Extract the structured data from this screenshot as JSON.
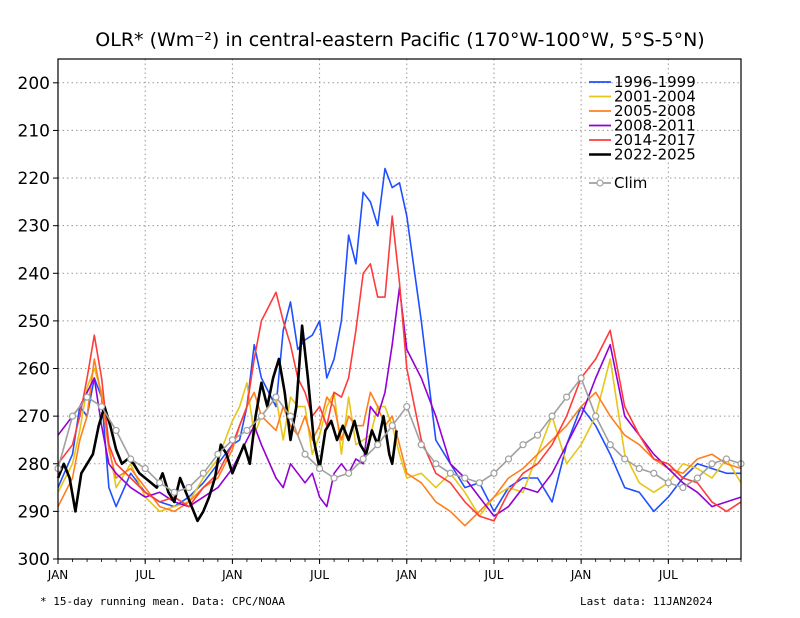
{
  "chart_data": {
    "type": "line",
    "title": "OLR* (Wm⁻²) in central-eastern Pacific (170°W-100°W, 5°S-5°N)",
    "xlabel": "",
    "ylabel": "",
    "ylim": [
      300,
      195
    ],
    "y_inverted": true,
    "y_ticks": [
      "200",
      "210",
      "220",
      "230",
      "240",
      "250",
      "260",
      "270",
      "280",
      "290",
      "300"
    ],
    "x_ticks": [
      "JAN",
      "JUL",
      "JAN",
      "JUL",
      "JAN",
      "JUL",
      "JAN",
      "JUL"
    ],
    "xlim_months": [
      0,
      47
    ],
    "grid": true,
    "legend_placement": "top-right",
    "series": [
      {
        "name": "1996-1999",
        "color": "#1f4fff",
        "x": [
          0,
          1,
          1.5,
          2,
          2.5,
          3,
          3.5,
          4,
          5,
          6,
          7,
          8,
          9,
          10,
          11,
          12,
          12.5,
          13,
          13.5,
          14,
          15,
          15.5,
          16,
          16.5,
          17,
          17.5,
          18,
          18.5,
          19,
          19.5,
          20,
          20.5,
          21,
          21.5,
          22,
          22.5,
          23,
          23.5,
          24,
          25,
          26,
          27,
          28,
          29,
          30,
          31,
          32,
          33,
          34,
          35,
          36,
          37,
          38,
          39,
          40,
          41,
          42,
          43,
          44,
          45,
          46,
          47
        ],
        "values": [
          285,
          278,
          268,
          270,
          262,
          266,
          285,
          289,
          282,
          286,
          288,
          289,
          287,
          284,
          280,
          276,
          275,
          268,
          255,
          262,
          268,
          252,
          246,
          256,
          254,
          253,
          250,
          262,
          258,
          250,
          232,
          238,
          223,
          225,
          230,
          218,
          222,
          221,
          228,
          250,
          275,
          280,
          285,
          284,
          290,
          285,
          283,
          283,
          288,
          276,
          268,
          272,
          278,
          285,
          286,
          290,
          287,
          283,
          280,
          281,
          282,
          282
        ]
      },
      {
        "name": "2001-2004",
        "color": "#e6c619",
        "x": [
          0,
          1,
          1.5,
          2,
          2.5,
          3,
          3.5,
          4,
          5,
          6,
          7,
          8,
          9,
          10,
          11,
          12,
          12.5,
          13,
          13.5,
          14,
          15,
          15.5,
          16,
          16.5,
          17,
          17.5,
          18,
          18.5,
          19,
          19.5,
          20,
          20.5,
          21,
          21.5,
          22,
          22.5,
          23,
          23.5,
          24,
          25,
          26,
          27,
          28,
          29,
          30,
          31,
          32,
          33,
          34,
          35,
          36,
          37,
          38,
          39,
          40,
          41,
          42,
          43,
          44,
          45,
          46,
          47
        ],
        "values": [
          286,
          280,
          273,
          264,
          260,
          265,
          276,
          285,
          280,
          287,
          290,
          289,
          288,
          283,
          279,
          271,
          268,
          263,
          274,
          270,
          266,
          275,
          266,
          268,
          268,
          278,
          274,
          268,
          265,
          278,
          266,
          276,
          275,
          274,
          268,
          268,
          272,
          278,
          283,
          282,
          285,
          282,
          286,
          291,
          287,
          285,
          286,
          278,
          270,
          280,
          276,
          270,
          258,
          278,
          284,
          286,
          284,
          280,
          281,
          283,
          279,
          284
        ]
      },
      {
        "name": "2005-2008",
        "color": "#ff7f1f",
        "x": [
          0,
          1,
          1.5,
          2,
          2.5,
          3,
          3.5,
          4,
          5,
          6,
          7,
          8,
          9,
          10,
          11,
          12,
          12.5,
          13,
          13.5,
          14,
          15,
          15.5,
          16,
          16.5,
          17,
          17.5,
          18,
          18.5,
          19,
          19.5,
          20,
          20.5,
          21,
          21.5,
          22,
          22.5,
          23,
          23.5,
          24,
          25,
          26,
          27,
          28,
          29,
          30,
          31,
          32,
          33,
          34,
          35,
          36,
          37,
          38,
          39,
          40,
          41,
          42,
          43,
          44,
          45,
          46,
          47
        ],
        "values": [
          289,
          283,
          275,
          270,
          258,
          266,
          277,
          283,
          281,
          285,
          289,
          290,
          288,
          285,
          283,
          277,
          272,
          268,
          265,
          270,
          273,
          268,
          272,
          274,
          270,
          275,
          272,
          266,
          268,
          275,
          270,
          272,
          272,
          265,
          268,
          272,
          270,
          276,
          282,
          284,
          288,
          290,
          293,
          290,
          287,
          283,
          281,
          278,
          275,
          272,
          268,
          265,
          270,
          274,
          276,
          279,
          281,
          282,
          279,
          278,
          280,
          281
        ]
      },
      {
        "name": "2008-2011",
        "color": "#9400d3",
        "x": [
          0,
          1,
          1.5,
          2,
          2.5,
          3,
          3.5,
          4,
          5,
          6,
          7,
          8,
          9,
          10,
          11,
          12,
          12.5,
          13,
          13.5,
          14,
          15,
          15.5,
          16,
          16.5,
          17,
          17.5,
          18,
          18.5,
          19,
          19.5,
          20,
          20.5,
          21,
          21.5,
          22,
          22.5,
          23,
          23.5,
          24,
          25,
          26,
          27,
          28,
          29,
          30,
          31,
          32,
          33,
          34,
          35,
          36,
          37,
          38,
          39,
          40,
          41,
          42,
          43,
          44,
          45,
          46,
          47
        ],
        "values": [
          274,
          270,
          268,
          265,
          262,
          272,
          280,
          282,
          285,
          287,
          286,
          288,
          289,
          287,
          285,
          281,
          278,
          275,
          272,
          276,
          283,
          285,
          280,
          282,
          284,
          282,
          287,
          289,
          282,
          280,
          282,
          279,
          280,
          268,
          270,
          265,
          255,
          243,
          256,
          262,
          270,
          280,
          283,
          287,
          291,
          289,
          285,
          286,
          282,
          276,
          270,
          262,
          255,
          270,
          274,
          278,
          281,
          284,
          286,
          289,
          288,
          287
        ]
      },
      {
        "name": "2014-2017",
        "color": "#ff3b3b",
        "x": [
          0,
          1,
          1.5,
          2,
          2.5,
          3,
          3.5,
          4,
          5,
          6,
          7,
          8,
          9,
          10,
          11,
          12,
          12.5,
          13,
          13.5,
          14,
          15,
          15.5,
          16,
          16.5,
          17,
          17.5,
          18,
          18.5,
          19,
          19.5,
          20,
          20.5,
          21,
          21.5,
          22,
          22.5,
          23,
          23.5,
          24,
          25,
          26,
          27,
          28,
          29,
          30,
          31,
          32,
          33,
          34,
          35,
          36,
          37,
          38,
          39,
          40,
          41,
          42,
          43,
          44,
          45,
          46,
          47
        ],
        "values": [
          280,
          276,
          270,
          262,
          253,
          262,
          276,
          280,
          283,
          286,
          288,
          287,
          289,
          285,
          282,
          276,
          272,
          268,
          258,
          250,
          244,
          250,
          255,
          262,
          265,
          270,
          268,
          272,
          265,
          266,
          262,
          252,
          240,
          238,
          245,
          245,
          228,
          242,
          260,
          275,
          282,
          284,
          288,
          291,
          292,
          286,
          282,
          280,
          276,
          270,
          262,
          258,
          252,
          268,
          274,
          279,
          280,
          283,
          284,
          288,
          290,
          288
        ]
      },
      {
        "name": "2022-2025",
        "color": "#000000",
        "x": [
          0,
          0.4,
          0.8,
          1.2,
          1.6,
          2,
          2.4,
          2.8,
          3.2,
          3.6,
          4,
          4.4,
          4.8,
          5.2,
          5.6,
          6,
          6.4,
          6.8,
          7.2,
          7.6,
          8,
          8.4,
          8.8,
          9.2,
          9.6,
          10,
          10.4,
          10.8,
          11.2,
          11.6,
          12,
          12.4,
          12.8,
          13.2,
          13.6,
          14,
          14.4,
          14.8,
          15.2,
          15.6,
          16,
          16.4,
          16.8,
          17.2,
          17.6,
          18,
          18.4,
          18.8,
          19.2,
          19.6,
          20,
          20.4,
          20.8,
          21.2,
          21.6,
          22,
          22.4,
          22.8,
          23,
          23.3
        ],
        "values": [
          283,
          280,
          283,
          290,
          282,
          280,
          278,
          272,
          268,
          272,
          277,
          280,
          279,
          280,
          282,
          283,
          284,
          285,
          282,
          286,
          288,
          283,
          286,
          289,
          292,
          290,
          287,
          283,
          276,
          278,
          282,
          279,
          276,
          280,
          270,
          263,
          268,
          262,
          258,
          265,
          275,
          268,
          251,
          262,
          275,
          281,
          273,
          271,
          275,
          272,
          275,
          271,
          276,
          278,
          273,
          276,
          270,
          278,
          280,
          273
        ]
      },
      {
        "name": "Clim",
        "color": "#a0a0a0",
        "x": [
          0,
          1,
          2,
          3,
          4,
          5,
          6,
          7,
          8,
          9,
          10,
          11,
          12,
          13,
          14,
          15,
          16,
          17,
          18,
          19,
          20,
          21,
          22,
          23,
          24,
          25,
          26,
          27,
          28,
          29,
          30,
          31,
          32,
          33,
          34,
          35,
          36,
          37,
          38,
          39,
          40,
          41,
          42,
          43,
          44,
          45,
          46,
          47
        ],
        "values": [
          281,
          270,
          266,
          268,
          273,
          279,
          281,
          284,
          286,
          285,
          282,
          278,
          275,
          273,
          270,
          266,
          270,
          278,
          281,
          283,
          282,
          279,
          276,
          272,
          268,
          276,
          280,
          282,
          283,
          284,
          282,
          279,
          276,
          274,
          270,
          266,
          262,
          270,
          276,
          279,
          281,
          282,
          284,
          285,
          283,
          280,
          279,
          280
        ]
      }
    ]
  },
  "footnote_left": "* 15-day running mean. Data: CPC/NOAA",
  "footnote_right": "Last data: 11JAN2024"
}
